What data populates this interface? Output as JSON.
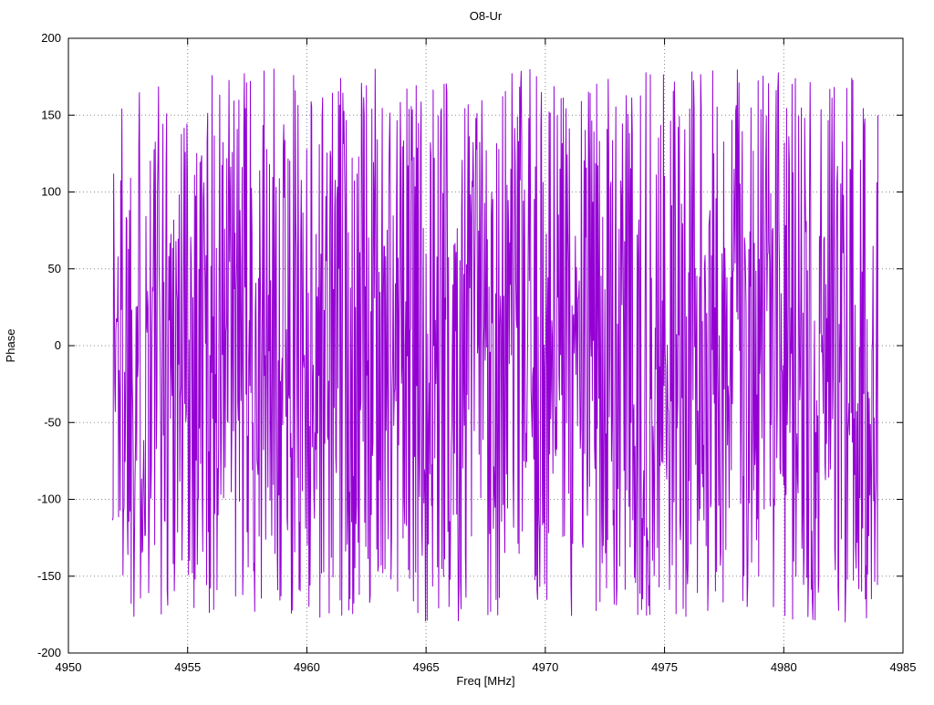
{
  "chart_data": {
    "type": "line",
    "title": "O8-Ur",
    "xlabel": "Freq [MHz]",
    "ylabel": "Phase",
    "xlim": [
      4950,
      4985
    ],
    "ylim": [
      -200,
      200
    ],
    "xticks": [
      4950,
      4955,
      4960,
      4965,
      4970,
      4975,
      4980,
      4985
    ],
    "yticks": [
      -200,
      -150,
      -100,
      -50,
      0,
      50,
      100,
      150,
      200
    ],
    "grid": true,
    "grid_style": "dotted",
    "legend": "none",
    "series": [
      {
        "name": "phase",
        "color": "#9400d3",
        "x_start": 4951.85,
        "x_end": 4983.95,
        "n_points": 1400,
        "y_distribution": "uniform",
        "y_min": -180,
        "y_max": 180,
        "seed": 1337
      }
    ]
  }
}
